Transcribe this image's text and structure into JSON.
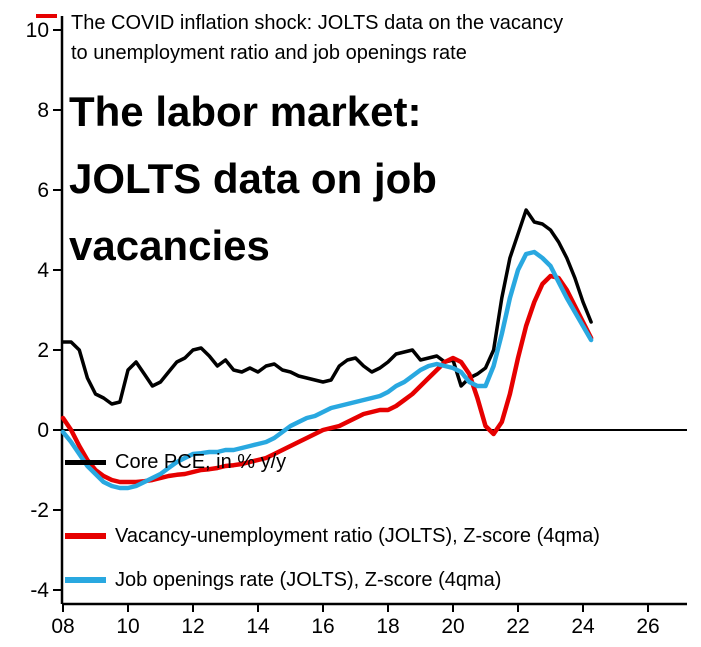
{
  "chart_data": {
    "type": "line",
    "title": "The labor market: JOLTS data on job vacancies",
    "title_lines": [
      "The labor market:",
      "JOLTS data on job",
      "vacancies"
    ],
    "subtitle": "The COVID inflation shock: JOLTS data on the vacancy to unemployment ratio and job openings rate",
    "subtitle_lines": [
      "The COVID inflation shock: JOLTS data on the vacancy",
      "to unemployment ratio and job openings rate"
    ],
    "xlabel": "",
    "ylabel": "",
    "ylim": [
      -4,
      10
    ],
    "xlim": [
      2008,
      2026
    ],
    "yticks": [
      -4,
      -2,
      0,
      2,
      4,
      6,
      8,
      10
    ],
    "xticks": [
      2008,
      2010,
      2012,
      2014,
      2016,
      2018,
      2020,
      2022,
      2024,
      2026
    ],
    "xtick_labels": [
      "08",
      "10",
      "12",
      "14",
      "16",
      "18",
      "20",
      "22",
      "24",
      "26"
    ],
    "grid": false,
    "zero_line": true,
    "legend_position": "inside-bottom-left",
    "background": "#ffffff",
    "x": [
      2008.0,
      2008.25,
      2008.5,
      2008.75,
      2009.0,
      2009.25,
      2009.5,
      2009.75,
      2010.0,
      2010.25,
      2010.5,
      2010.75,
      2011.0,
      2011.25,
      2011.5,
      2011.75,
      2012.0,
      2012.25,
      2012.5,
      2012.75,
      2013.0,
      2013.25,
      2013.5,
      2013.75,
      2014.0,
      2014.25,
      2014.5,
      2014.75,
      2015.0,
      2015.25,
      2015.5,
      2015.75,
      2016.0,
      2016.25,
      2016.5,
      2016.75,
      2017.0,
      2017.25,
      2017.5,
      2017.75,
      2018.0,
      2018.25,
      2018.5,
      2018.75,
      2019.0,
      2019.25,
      2019.5,
      2019.75,
      2020.0,
      2020.25,
      2020.5,
      2020.75,
      2021.0,
      2021.25,
      2021.5,
      2021.75,
      2022.0,
      2022.25,
      2022.5,
      2022.75,
      2023.0,
      2023.25,
      2023.5,
      2023.75,
      2024.0,
      2024.25
    ],
    "series": [
      {
        "name": "Core PCE, in % y/y",
        "color": "#000000",
        "values": [
          2.2,
          2.2,
          2.0,
          1.3,
          0.9,
          0.8,
          0.65,
          0.7,
          1.5,
          1.7,
          1.4,
          1.1,
          1.2,
          1.45,
          1.7,
          1.8,
          2.0,
          2.05,
          1.85,
          1.6,
          1.75,
          1.5,
          1.45,
          1.55,
          1.45,
          1.6,
          1.65,
          1.5,
          1.45,
          1.35,
          1.3,
          1.25,
          1.2,
          1.25,
          1.6,
          1.75,
          1.8,
          1.6,
          1.45,
          1.55,
          1.7,
          1.9,
          1.95,
          2.0,
          1.75,
          1.8,
          1.85,
          1.7,
          1.75,
          1.1,
          1.3,
          1.4,
          1.55,
          2.0,
          3.3,
          4.3,
          4.9,
          5.5,
          5.2,
          5.15,
          5.0,
          4.7,
          4.3,
          3.8,
          3.2,
          2.7
        ]
      },
      {
        "name": "Vacancy-unemployment ratio (JOLTS), Z-score (4qma)",
        "color": "#e60000",
        "values": [
          0.3,
          0.0,
          -0.4,
          -0.75,
          -1.0,
          -1.15,
          -1.25,
          -1.3,
          -1.3,
          -1.3,
          -1.28,
          -1.25,
          -1.2,
          -1.15,
          -1.12,
          -1.1,
          -1.05,
          -1.0,
          -0.98,
          -0.95,
          -0.9,
          -0.88,
          -0.85,
          -0.8,
          -0.75,
          -0.7,
          -0.6,
          -0.5,
          -0.4,
          -0.3,
          -0.2,
          -0.1,
          0.0,
          0.05,
          0.1,
          0.2,
          0.3,
          0.4,
          0.45,
          0.5,
          0.5,
          0.6,
          0.75,
          0.9,
          1.1,
          1.3,
          1.5,
          1.7,
          1.8,
          1.7,
          1.4,
          0.8,
          0.1,
          -0.1,
          0.2,
          0.9,
          1.8,
          2.6,
          3.2,
          3.65,
          3.85,
          3.8,
          3.5,
          3.1,
          2.7,
          2.3
        ]
      },
      {
        "name": "Job openings rate (JOLTS), Z-score (4qma)",
        "color": "#29a8e0",
        "values": [
          -0.05,
          -0.3,
          -0.6,
          -0.9,
          -1.1,
          -1.3,
          -1.4,
          -1.45,
          -1.45,
          -1.4,
          -1.3,
          -1.2,
          -1.1,
          -0.95,
          -0.8,
          -0.7,
          -0.6,
          -0.58,
          -0.55,
          -0.55,
          -0.5,
          -0.5,
          -0.45,
          -0.4,
          -0.35,
          -0.3,
          -0.2,
          -0.05,
          0.1,
          0.2,
          0.3,
          0.35,
          0.45,
          0.55,
          0.6,
          0.65,
          0.7,
          0.75,
          0.8,
          0.85,
          0.95,
          1.1,
          1.2,
          1.35,
          1.5,
          1.6,
          1.65,
          1.6,
          1.55,
          1.45,
          1.2,
          1.1,
          1.1,
          1.6,
          2.4,
          3.3,
          4.0,
          4.4,
          4.45,
          4.3,
          4.1,
          3.7,
          3.3,
          2.95,
          2.6,
          2.25
        ]
      }
    ]
  }
}
